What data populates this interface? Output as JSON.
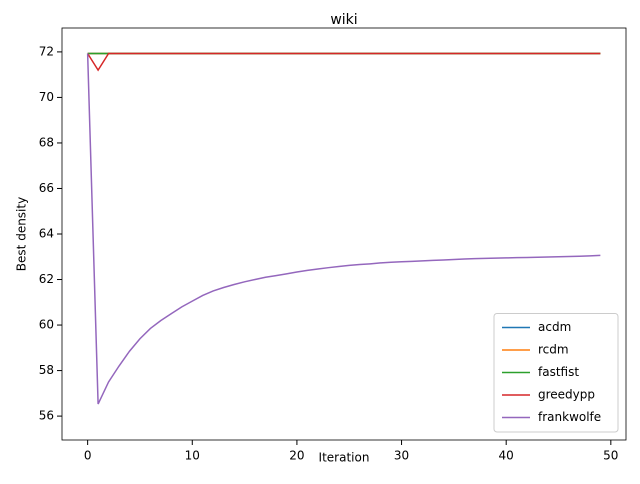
{
  "chart_data": {
    "type": "line",
    "title": "wiki",
    "x_label": "Iteration",
    "y_label": "Best density",
    "x": [
      0,
      1,
      2,
      3,
      4,
      5,
      6,
      7,
      8,
      9,
      10,
      11,
      12,
      13,
      14,
      15,
      16,
      17,
      18,
      19,
      20,
      21,
      22,
      23,
      24,
      25,
      26,
      27,
      28,
      29,
      30,
      31,
      32,
      33,
      34,
      35,
      36,
      37,
      38,
      39,
      40,
      41,
      42,
      43,
      44,
      45,
      46,
      47,
      48,
      49
    ],
    "series": [
      {
        "name": "acdm",
        "color": "#1f77b4",
        "values": [
          71.93,
          71.93,
          71.93,
          71.93,
          71.93,
          71.93,
          71.93,
          71.93,
          71.93,
          71.93,
          71.93,
          71.93,
          71.93,
          71.93,
          71.93,
          71.93,
          71.93,
          71.93,
          71.93,
          71.93,
          71.93,
          71.93,
          71.93,
          71.93,
          71.93,
          71.93,
          71.93,
          71.93,
          71.93,
          71.93,
          71.93,
          71.93,
          71.93,
          71.93,
          71.93,
          71.93,
          71.93,
          71.93,
          71.93,
          71.93,
          71.93,
          71.93,
          71.93,
          71.93,
          71.93,
          71.93,
          71.93,
          71.93,
          71.93,
          71.93
        ]
      },
      {
        "name": "rcdm",
        "color": "#ff7f0e",
        "values": [
          71.93,
          71.93,
          71.93,
          71.93,
          71.93,
          71.93,
          71.93,
          71.93,
          71.93,
          71.93,
          71.93,
          71.93,
          71.93,
          71.93,
          71.93,
          71.93,
          71.93,
          71.93,
          71.93,
          71.93,
          71.93,
          71.93,
          71.93,
          71.93,
          71.93,
          71.93,
          71.93,
          71.93,
          71.93,
          71.93,
          71.93,
          71.93,
          71.93,
          71.93,
          71.93,
          71.93,
          71.93,
          71.93,
          71.93,
          71.93,
          71.93,
          71.93,
          71.93,
          71.93,
          71.93,
          71.93,
          71.93,
          71.93,
          71.93,
          71.93
        ]
      },
      {
        "name": "fastfist",
        "color": "#2ca02c",
        "values": [
          71.93,
          71.93,
          71.93,
          71.93,
          71.93,
          71.93,
          71.93,
          71.93,
          71.93,
          71.93,
          71.93,
          71.93,
          71.93,
          71.93,
          71.93,
          71.93,
          71.93,
          71.93,
          71.93,
          71.93,
          71.93,
          71.93,
          71.93,
          71.93,
          71.93,
          71.93,
          71.93,
          71.93,
          71.93,
          71.93,
          71.93,
          71.93,
          71.93,
          71.93,
          71.93,
          71.93,
          71.93,
          71.93,
          71.93,
          71.93,
          71.93,
          71.93,
          71.93,
          71.93,
          71.93,
          71.93,
          71.93,
          71.93,
          71.93,
          71.93
        ]
      },
      {
        "name": "greedypp",
        "color": "#d62728",
        "values": [
          71.93,
          71.2,
          71.93,
          71.93,
          71.93,
          71.93,
          71.93,
          71.93,
          71.93,
          71.93,
          71.93,
          71.93,
          71.93,
          71.93,
          71.93,
          71.93,
          71.93,
          71.93,
          71.93,
          71.93,
          71.93,
          71.93,
          71.93,
          71.93,
          71.93,
          71.93,
          71.93,
          71.93,
          71.93,
          71.93,
          71.93,
          71.93,
          71.93,
          71.93,
          71.93,
          71.93,
          71.93,
          71.93,
          71.93,
          71.93,
          71.93,
          71.93,
          71.93,
          71.93,
          71.93,
          71.93,
          71.93,
          71.93,
          71.93,
          71.93
        ]
      },
      {
        "name": "frankwolfe",
        "color": "#9467bd",
        "values": [
          71.93,
          56.53,
          57.5,
          58.2,
          58.85,
          59.4,
          59.85,
          60.2,
          60.5,
          60.8,
          61.05,
          61.3,
          61.5,
          61.65,
          61.78,
          61.9,
          62.0,
          62.1,
          62.17,
          62.25,
          62.33,
          62.4,
          62.46,
          62.52,
          62.57,
          62.62,
          62.66,
          62.69,
          62.73,
          62.76,
          62.78,
          62.8,
          62.82,
          62.84,
          62.86,
          62.88,
          62.9,
          62.92,
          62.93,
          62.94,
          62.95,
          62.96,
          62.97,
          62.98,
          62.99,
          63.0,
          63.01,
          63.02,
          63.04,
          63.06
        ]
      }
    ],
    "xlim": [
      -2.45,
      51.45
    ],
    "xticks": [
      0,
      10,
      20,
      30,
      40,
      50
    ],
    "ylim": [
      54.95,
      73.05
    ],
    "yticks": [
      56,
      58,
      60,
      62,
      64,
      66,
      68,
      70,
      72
    ],
    "legend": "lower right"
  }
}
